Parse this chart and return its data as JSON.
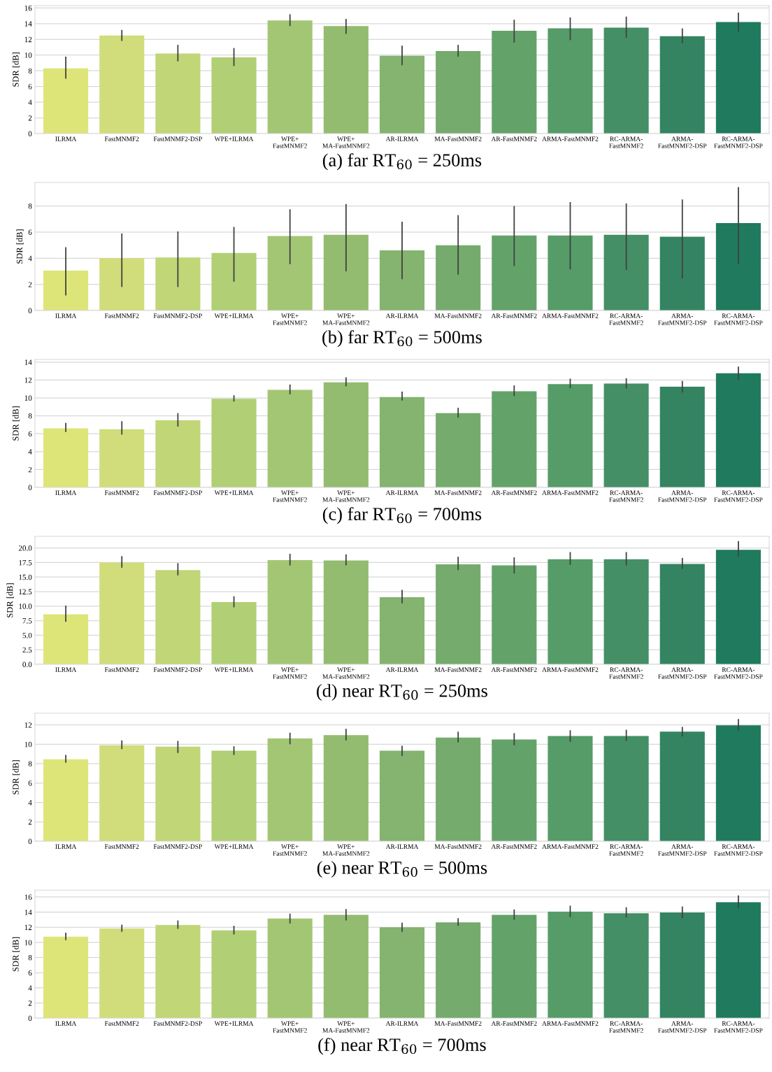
{
  "chart_data": [
    {
      "type": "bar",
      "title": "(a) far RT$_{60}$ = 250ms",
      "ylabel": "SDR [dB]",
      "grid": "y",
      "legend": false,
      "categories": [
        "ILRMA",
        "FastMNMF2",
        "FastMNMF2-DSP",
        "WPE+ILRMA",
        "WPE+\nFastMNMF2",
        "WPE+\nMA-FastMNMF2",
        "AR-ILRMA",
        "MA-FastMNMF2",
        "AR-FastMNMF2",
        "ARMA-FastMNMF2",
        "RC-ARMA-\nFastMNMF2",
        "ARMA-\nFastMNMF2-DSP",
        "RC-ARMA-\nFastMNMF2-DSP"
      ],
      "colors": [
        "#dde578",
        "#d0dd7a",
        "#c0d677",
        "#b1cf75",
        "#a3c674",
        "#94bc70",
        "#84b46f",
        "#75ab6d",
        "#63a36a",
        "#559c68",
        "#458f66",
        "#348462",
        "#1f7a5e"
      ],
      "values": [
        8.3,
        12.5,
        10.2,
        9.7,
        14.4,
        13.7,
        9.9,
        10.5,
        13.1,
        13.4,
        13.5,
        12.4,
        14.2
      ],
      "errors": [
        [
          7.0,
          9.8
        ],
        [
          11.8,
          13.2
        ],
        [
          9.2,
          11.3
        ],
        [
          8.6,
          10.9
        ],
        [
          13.7,
          15.2
        ],
        [
          12.7,
          14.6
        ],
        [
          8.7,
          11.2
        ],
        [
          9.8,
          11.3
        ],
        [
          11.6,
          14.5
        ],
        [
          11.9,
          14.8
        ],
        [
          12.2,
          14.9
        ],
        [
          11.5,
          13.4
        ],
        [
          13.0,
          15.4
        ]
      ],
      "ylim": [
        0,
        16.3
      ],
      "yticks": [
        0,
        2,
        4,
        6,
        8,
        10,
        12,
        14,
        16
      ]
    },
    {
      "type": "bar",
      "title": "(b) far RT$_{60}$ = 500ms",
      "ylabel": "SDR [dB]",
      "grid": "y",
      "legend": false,
      "categories": [
        "ILRMA",
        "FastMNMF2",
        "FastMNMF2-DSP",
        "WPE+ILRMA",
        "WPE+\nFastMNMF2",
        "WPE+\nMA-FastMNMF2",
        "AR-ILRMA",
        "MA-FastMNMF2",
        "AR-FastMNMF2",
        "ARMA-FastMNMF2",
        "RC-ARMA-\nFastMNMF2",
        "ARMA-\nFastMNMF2-DSP",
        "RC-ARMA-\nFastMNMF2-DSP"
      ],
      "colors": [
        "#dde578",
        "#d0dd7a",
        "#c0d677",
        "#b1cf75",
        "#a3c674",
        "#94bc70",
        "#84b46f",
        "#75ab6d",
        "#63a36a",
        "#559c68",
        "#458f66",
        "#348462",
        "#1f7a5e"
      ],
      "values": [
        3.05,
        4.0,
        4.05,
        4.4,
        5.7,
        5.8,
        4.6,
        5.0,
        5.75,
        5.75,
        5.8,
        5.65,
        6.7
      ],
      "errors": [
        [
          1.15,
          4.85
        ],
        [
          1.8,
          5.9
        ],
        [
          1.8,
          6.05
        ],
        [
          2.2,
          6.4
        ],
        [
          3.55,
          7.75
        ],
        [
          3.0,
          8.15
        ],
        [
          2.4,
          6.8
        ],
        [
          2.75,
          7.3
        ],
        [
          3.4,
          8.0
        ],
        [
          3.15,
          8.3
        ],
        [
          3.1,
          8.2
        ],
        [
          2.45,
          8.5
        ],
        [
          3.55,
          9.45
        ]
      ],
      "ylim": [
        0,
        9.8
      ],
      "yticks": [
        0,
        2,
        4,
        6,
        8
      ]
    },
    {
      "type": "bar",
      "title": "(c) far RT$_{60}$ = 700ms",
      "ylabel": "SDR [dB]",
      "grid": "y",
      "legend": false,
      "categories": [
        "ILRMA",
        "FastMNMF2",
        "FastMNMF2-DSP",
        "WPE+ILRMA",
        "WPE+\nFastMNMF2",
        "WPE+\nMA-FastMNMF2",
        "AR-ILRMA",
        "MA-FastMNMF2",
        "AR-FastMNMF2",
        "ARMA-FastMNMF2",
        "RC-ARMA-\nFastMNMF2",
        "ARMA-\nFastMNMF2-DSP",
        "RC-ARMA-\nFastMNMF2-DSP"
      ],
      "colors": [
        "#dde578",
        "#d0dd7a",
        "#c0d677",
        "#b1cf75",
        "#a3c674",
        "#94bc70",
        "#84b46f",
        "#75ab6d",
        "#63a36a",
        "#559c68",
        "#458f66",
        "#348462",
        "#1f7a5e"
      ],
      "values": [
        6.6,
        6.5,
        7.5,
        9.9,
        10.9,
        11.75,
        10.1,
        8.3,
        10.75,
        11.55,
        11.6,
        11.25,
        12.75
      ],
      "errors": [
        [
          6.2,
          7.2
        ],
        [
          5.9,
          7.4
        ],
        [
          6.8,
          8.3
        ],
        [
          9.6,
          10.3
        ],
        [
          10.4,
          11.5
        ],
        [
          11.3,
          12.3
        ],
        [
          9.7,
          10.7
        ],
        [
          7.8,
          8.9
        ],
        [
          10.2,
          11.4
        ],
        [
          11.1,
          12.15
        ],
        [
          11.05,
          12.2
        ],
        [
          10.6,
          11.9
        ],
        [
          12.05,
          13.5
        ]
      ],
      "ylim": [
        0,
        14.3
      ],
      "yticks": [
        0,
        2,
        4,
        6,
        8,
        10,
        12,
        14
      ]
    },
    {
      "type": "bar",
      "title": "(d) near RT$_{60}$ = 250ms",
      "ylabel": "SDR [dB]",
      "grid": "y",
      "legend": false,
      "categories": [
        "ILRMA",
        "FastMNMF2",
        "FastMNMF2-DSP",
        "WPE+ILRMA",
        "WPE+\nFastMNMF2",
        "WPE+\nMA-FastMNMF2",
        "AR-ILRMA",
        "MA-FastMNMF2",
        "AR-FastMNMF2",
        "ARMA-FastMNMF2",
        "RC-ARMA-\nFastMNMF2",
        "ARMA-\nFastMNMF2-DSP",
        "RC-ARMA-\nFastMNMF2-DSP"
      ],
      "colors": [
        "#dde578",
        "#d0dd7a",
        "#c0d677",
        "#b1cf75",
        "#a3c674",
        "#94bc70",
        "#84b46f",
        "#75ab6d",
        "#63a36a",
        "#559c68",
        "#458f66",
        "#348462",
        "#1f7a5e"
      ],
      "values": [
        8.6,
        17.5,
        16.2,
        10.7,
        17.9,
        17.85,
        11.55,
        17.2,
        17.0,
        18.05,
        18.05,
        17.25,
        19.7
      ],
      "errors": [
        [
          7.3,
          10.1
        ],
        [
          16.6,
          18.6
        ],
        [
          15.3,
          17.4
        ],
        [
          9.8,
          11.7
        ],
        [
          17.0,
          19.0
        ],
        [
          17.0,
          18.9
        ],
        [
          10.5,
          12.8
        ],
        [
          16.2,
          18.5
        ],
        [
          15.6,
          18.4
        ],
        [
          17.1,
          19.3
        ],
        [
          17.0,
          19.3
        ],
        [
          16.4,
          18.3
        ],
        [
          18.5,
          21.2
        ]
      ],
      "ylim": [
        0,
        22
      ],
      "yticks": [
        {
          "value": 0,
          "label": "0.0"
        },
        2.5,
        {
          "value": 5,
          "label": "5.0"
        },
        7.5,
        {
          "value": 10,
          "label": "10.0"
        },
        12.5,
        {
          "value": 15,
          "label": "15.0"
        },
        17.5,
        {
          "value": 20,
          "label": "20.0"
        }
      ]
    },
    {
      "type": "bar",
      "title": "(e) near RT$_{60}$ = 500ms",
      "ylabel": "SDR [dB]",
      "grid": "y",
      "legend": false,
      "categories": [
        "ILRMA",
        "FastMNMF2",
        "FastMNMF2-DSP",
        "WPE+ILRMA",
        "WPE+\nFastMNMF2",
        "WPE+\nMA-FastMNMF2",
        "AR-ILRMA",
        "MA-FastMNMF2",
        "AR-FastMNMF2",
        "ARMA-FastMNMF2",
        "RC-ARMA-\nFastMNMF2",
        "ARMA-\nFastMNMF2-DSP",
        "RC-ARMA-\nFastMNMF2-DSP"
      ],
      "colors": [
        "#dde578",
        "#d0dd7a",
        "#c0d677",
        "#b1cf75",
        "#a3c674",
        "#94bc70",
        "#84b46f",
        "#75ab6d",
        "#63a36a",
        "#559c68",
        "#458f66",
        "#348462",
        "#1f7a5e"
      ],
      "values": [
        8.45,
        9.9,
        9.75,
        9.35,
        10.6,
        10.95,
        9.35,
        10.7,
        10.5,
        10.85,
        10.85,
        11.3,
        11.95
      ],
      "errors": [
        [
          8.1,
          8.9
        ],
        [
          9.5,
          10.4
        ],
        [
          9.1,
          10.35
        ],
        [
          8.9,
          9.8
        ],
        [
          10.0,
          11.2
        ],
        [
          10.4,
          11.6
        ],
        [
          8.8,
          9.85
        ],
        [
          10.2,
          11.3
        ],
        [
          9.9,
          11.15
        ],
        [
          10.25,
          11.45
        ],
        [
          10.35,
          11.5
        ],
        [
          10.8,
          11.8
        ],
        [
          11.4,
          12.6
        ]
      ],
      "ylim": [
        0,
        13.2
      ],
      "yticks": [
        0,
        2,
        4,
        6,
        8,
        10,
        12
      ]
    },
    {
      "type": "bar",
      "title": "(f) near RT$_{60}$ = 700ms",
      "ylabel": "SDR [dB]",
      "grid": "y",
      "legend": false,
      "categories": [
        "ILRMA",
        "FastMNMF2",
        "FastMNMF2-DSP",
        "WPE+ILRMA",
        "WPE+\nFastMNMF2",
        "WPE+\nMA-FastMNMF2",
        "AR-ILRMA",
        "MA-FastMNMF2",
        "AR-FastMNMF2",
        "ARMA-FastMNMF2",
        "RC-ARMA-\nFastMNMF2",
        "ARMA-\nFastMNMF2-DSP",
        "RC-ARMA-\nFastMNMF2-DSP"
      ],
      "colors": [
        "#dde578",
        "#d0dd7a",
        "#c0d677",
        "#b1cf75",
        "#a3c674",
        "#94bc70",
        "#84b46f",
        "#75ab6d",
        "#63a36a",
        "#559c68",
        "#458f66",
        "#348462",
        "#1f7a5e"
      ],
      "values": [
        10.75,
        11.85,
        12.3,
        11.6,
        13.15,
        13.65,
        12.0,
        12.65,
        13.65,
        14.05,
        13.85,
        13.95,
        15.3
      ],
      "errors": [
        [
          10.3,
          11.3
        ],
        [
          11.4,
          12.35
        ],
        [
          11.8,
          12.9
        ],
        [
          11.05,
          12.2
        ],
        [
          12.5,
          13.8
        ],
        [
          12.9,
          14.4
        ],
        [
          11.4,
          12.6
        ],
        [
          12.2,
          13.2
        ],
        [
          13.0,
          14.35
        ],
        [
          13.35,
          14.85
        ],
        [
          13.3,
          14.65
        ],
        [
          13.2,
          14.75
        ],
        [
          14.55,
          16.2
        ]
      ],
      "ylim": [
        0,
        16.9
      ],
      "yticks": [
        0,
        2,
        4,
        6,
        8,
        10,
        12,
        14,
        16
      ]
    }
  ]
}
